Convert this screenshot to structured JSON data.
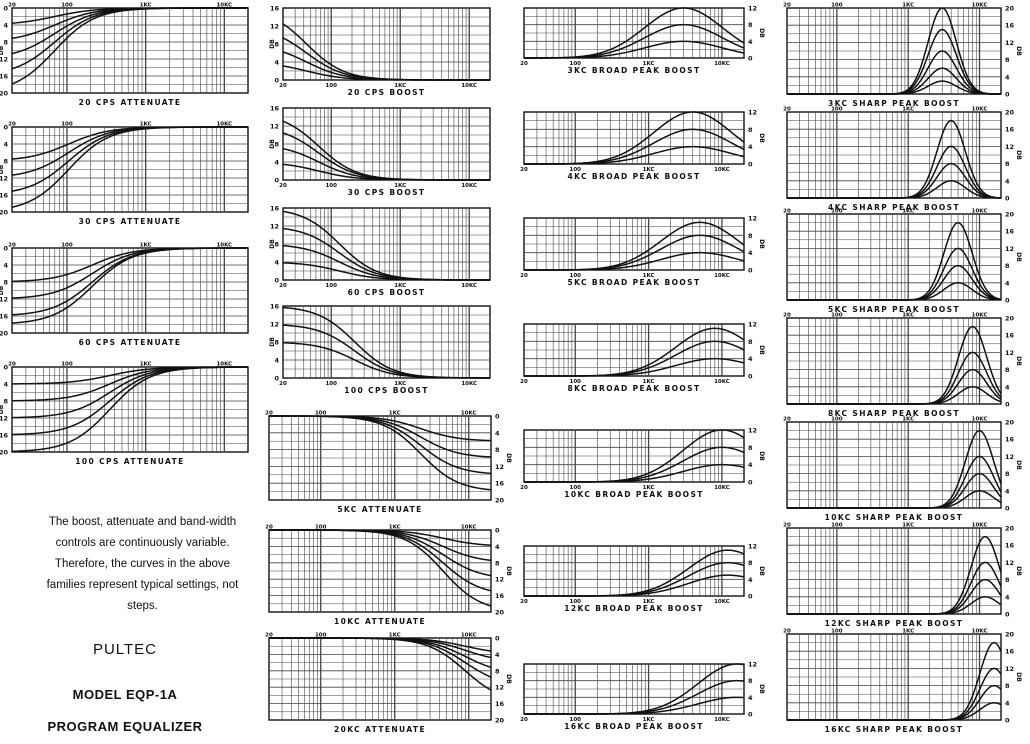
{
  "description": "The boost, attenuate and band-width controls are continuously variable. Therefore, the curves in the above families represent typical settings, not steps.",
  "brand": {
    "maker": "PULTEC",
    "model": "MODEL EQP-1A",
    "product": "PROGRAM EQUALIZER"
  },
  "axis": {
    "x_tick_labels": [
      "20",
      "100",
      "1KC",
      "10KC"
    ],
    "x_tick_values": [
      20,
      100,
      1000,
      10000
    ],
    "x_range": [
      20,
      20000
    ],
    "x_scale": "log",
    "y_label": "DB",
    "colors": {
      "ink": "#111111",
      "grid": "#444444",
      "paper": "#ffffff"
    }
  },
  "chart_data": [
    {
      "type": "line",
      "title": "20 CPS ATTENUATE",
      "kind": "low-attenuate",
      "f0": 20,
      "ylim": [
        0,
        20
      ],
      "y_tick_labels": [
        "0",
        "4",
        "8",
        "12",
        "16",
        "20"
      ],
      "levels": [
        20,
        16,
        12,
        8,
        4
      ]
    },
    {
      "type": "line",
      "title": "30 CPS ATTENUATE",
      "kind": "low-attenuate",
      "f0": 30,
      "ylim": [
        0,
        20
      ],
      "y_tick_labels": [
        "0",
        "4",
        "8",
        "12",
        "16",
        "20"
      ],
      "levels": [
        20,
        16,
        12,
        8
      ]
    },
    {
      "type": "line",
      "title": "60 CPS ATTENUATE",
      "kind": "low-attenuate",
      "f0": 60,
      "ylim": [
        0,
        20
      ],
      "y_tick_labels": [
        "0",
        "4",
        "8",
        "12",
        "16",
        "20"
      ],
      "levels": [
        18,
        16,
        12,
        8
      ]
    },
    {
      "type": "line",
      "title": "100 CPS ATTENUATE",
      "kind": "low-attenuate",
      "f0": 100,
      "ylim": [
        0,
        20
      ],
      "y_tick_labels": [
        "0",
        "4",
        "8",
        "12",
        "16",
        "20"
      ],
      "levels": [
        20,
        16,
        12,
        8,
        4
      ]
    },
    {
      "type": "line",
      "title": "20 CPS BOOST",
      "kind": "low-boost",
      "f0": 20,
      "ylim": [
        0,
        16
      ],
      "y_tick_labels": [
        "0",
        "4",
        "8",
        "12",
        "16"
      ],
      "levels": [
        16,
        12,
        8,
        4
      ]
    },
    {
      "type": "line",
      "title": "30 CPS BOOST",
      "kind": "low-boost",
      "f0": 30,
      "ylim": [
        0,
        16
      ],
      "y_tick_labels": [
        "0",
        "4",
        "8",
        "12",
        "16"
      ],
      "levels": [
        15,
        12,
        8,
        4
      ]
    },
    {
      "type": "line",
      "title": "60 CPS BOOST",
      "kind": "low-boost",
      "f0": 60,
      "ylim": [
        0,
        16
      ],
      "y_tick_labels": [
        "0",
        "4",
        "8",
        "12",
        "16"
      ],
      "levels": [
        16,
        12,
        8,
        4
      ]
    },
    {
      "type": "line",
      "title": "100 CPS BOOST",
      "kind": "low-boost",
      "f0": 100,
      "ylim": [
        0,
        16
      ],
      "y_tick_labels": [
        "0",
        "4",
        "8",
        "12",
        "16"
      ],
      "levels": [
        16,
        12,
        8
      ]
    },
    {
      "type": "line",
      "title": "5KC ATTENUATE",
      "kind": "high-attenuate",
      "f0": 5000,
      "ylim": [
        0,
        20
      ],
      "y_tick_labels": [
        "0",
        "4",
        "8",
        "12",
        "16",
        "20"
      ],
      "levels": [
        18,
        14,
        10,
        6
      ]
    },
    {
      "type": "line",
      "title": "10KC ATTENUATE",
      "kind": "high-attenuate",
      "f0": 10000,
      "ylim": [
        0,
        20
      ],
      "y_tick_labels": [
        "0",
        "4",
        "8",
        "12",
        "16",
        "20"
      ],
      "levels": [
        20,
        16,
        12,
        8,
        4
      ]
    },
    {
      "type": "line",
      "title": "20KC ATTENUATE",
      "kind": "high-attenuate",
      "f0": 20000,
      "ylim": [
        0,
        20
      ],
      "y_tick_labels": [
        "0",
        "4",
        "8",
        "12",
        "16",
        "20"
      ],
      "levels": [
        16,
        12,
        9,
        6,
        4
      ]
    },
    {
      "type": "line",
      "title": "3KC BROAD PEAK BOOST",
      "kind": "peak",
      "f0": 3000,
      "q": 0.75,
      "ylim": [
        0,
        12
      ],
      "y_tick_labels": [
        "0",
        "4",
        "8",
        "12"
      ],
      "levels": [
        12,
        8,
        4
      ]
    },
    {
      "type": "line",
      "title": "4KC BROAD PEAK BOOST",
      "kind": "peak",
      "f0": 4000,
      "q": 0.75,
      "ylim": [
        0,
        12
      ],
      "y_tick_labels": [
        "0",
        "4",
        "8",
        "12"
      ],
      "levels": [
        12,
        8,
        4
      ]
    },
    {
      "type": "line",
      "title": "5KC BROAD PEAK BOOST",
      "kind": "peak",
      "f0": 5000,
      "q": 0.75,
      "ylim": [
        0,
        12
      ],
      "y_tick_labels": [
        "0",
        "4",
        "8",
        "12"
      ],
      "levels": [
        11,
        8,
        4
      ]
    },
    {
      "type": "line",
      "title": "8KC BROAD PEAK BOOST",
      "kind": "peak",
      "f0": 8000,
      "q": 0.75,
      "ylim": [
        0,
        12
      ],
      "y_tick_labels": [
        "0",
        "4",
        "8",
        "12"
      ],
      "levels": [
        11,
        8,
        4
      ]
    },
    {
      "type": "line",
      "title": "10KC BROAD PEAK BOOST",
      "kind": "peak",
      "f0": 10000,
      "q": 0.75,
      "ylim": [
        0,
        12
      ],
      "y_tick_labels": [
        "0",
        "4",
        "8",
        "12"
      ],
      "levels": [
        12,
        8,
        4
      ]
    },
    {
      "type": "line",
      "title": "12KC BROAD PEAK BOOST",
      "kind": "peak",
      "f0": 12000,
      "q": 0.75,
      "ylim": [
        0,
        12
      ],
      "y_tick_labels": [
        "0",
        "4",
        "8",
        "12"
      ],
      "levels": [
        11,
        8,
        5
      ]
    },
    {
      "type": "line",
      "title": "16KC BROAD PEAK BOOST",
      "kind": "peak",
      "f0": 16000,
      "q": 0.75,
      "ylim": [
        0,
        12
      ],
      "y_tick_labels": [
        "0",
        "4",
        "8",
        "12"
      ],
      "levels": [
        12,
        8,
        4
      ]
    },
    {
      "type": "line",
      "title": "3KC SHARP PEAK BOOST",
      "kind": "peak",
      "f0": 3000,
      "q": 0.28,
      "ylim": [
        0,
        20
      ],
      "y_tick_labels": [
        "0",
        "4",
        "8",
        "12",
        "16",
        "20"
      ],
      "levels": [
        20,
        15,
        10,
        6,
        3
      ]
    },
    {
      "type": "line",
      "title": "4KC SHARP PEAK BOOST",
      "kind": "peak",
      "f0": 4000,
      "q": 0.28,
      "ylim": [
        0,
        20
      ],
      "y_tick_labels": [
        "0",
        "4",
        "8",
        "12",
        "16",
        "20"
      ],
      "levels": [
        18,
        12,
        8,
        4
      ]
    },
    {
      "type": "line",
      "title": "5KC SHARP PEAK BOOST",
      "kind": "peak",
      "f0": 5000,
      "q": 0.28,
      "ylim": [
        0,
        20
      ],
      "y_tick_labels": [
        "0",
        "4",
        "8",
        "12",
        "16",
        "20"
      ],
      "levels": [
        18,
        12,
        8,
        4
      ]
    },
    {
      "type": "line",
      "title": "8KC SHARP PEAK BOOST",
      "kind": "peak",
      "f0": 8000,
      "q": 0.28,
      "ylim": [
        0,
        20
      ],
      "y_tick_labels": [
        "0",
        "4",
        "8",
        "12",
        "16",
        "20"
      ],
      "levels": [
        18,
        12,
        8,
        4
      ]
    },
    {
      "type": "line",
      "title": "10KC SHARP PEAK BOOST",
      "kind": "peak",
      "f0": 10000,
      "q": 0.28,
      "ylim": [
        0,
        20
      ],
      "y_tick_labels": [
        "0",
        "4",
        "8",
        "12",
        "16",
        "20"
      ],
      "levels": [
        18,
        12,
        8,
        4
      ]
    },
    {
      "type": "line",
      "title": "12KC SHARP PEAK BOOST",
      "kind": "peak",
      "f0": 12000,
      "q": 0.28,
      "ylim": [
        0,
        20
      ],
      "y_tick_labels": [
        "0",
        "4",
        "8",
        "12",
        "16",
        "20"
      ],
      "levels": [
        18,
        12,
        8,
        4
      ]
    },
    {
      "type": "line",
      "title": "16KC SHARP PEAK BOOST",
      "kind": "peak",
      "f0": 16000,
      "q": 0.28,
      "ylim": [
        0,
        20
      ],
      "y_tick_labels": [
        "0",
        "4",
        "8",
        "12",
        "16",
        "20"
      ],
      "levels": [
        18,
        12,
        8,
        4
      ]
    }
  ]
}
